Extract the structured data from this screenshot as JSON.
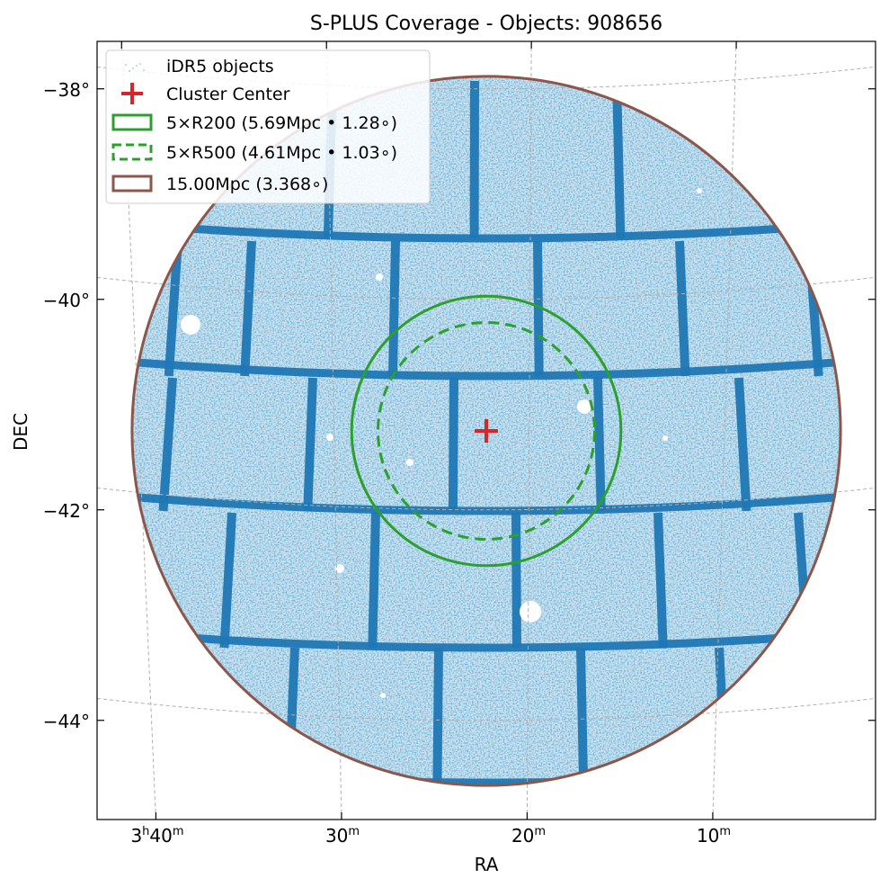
{
  "chart_data": {
    "type": "scatter",
    "title": "S-PLUS Coverage - Objects: 908656",
    "xlabel": "RA",
    "ylabel": "DEC",
    "x_ticks": [
      {
        "value_min": 220,
        "label_main": "3",
        "label_h": "h",
        "label_mm": "40",
        "label_m": "m"
      },
      {
        "value_min": 210,
        "label_main": "",
        "label_h": "",
        "label_mm": "30",
        "label_m": "m"
      },
      {
        "value_min": 200,
        "label_main": "",
        "label_h": "",
        "label_mm": "20",
        "label_m": "m"
      },
      {
        "value_min": 190,
        "label_main": "",
        "label_h": "",
        "label_mm": "10",
        "label_m": "m"
      }
    ],
    "y_ticks": [
      {
        "value": -38,
        "label": "−38°"
      },
      {
        "value": -40,
        "label": "−40°"
      },
      {
        "value": -42,
        "label": "−42°"
      },
      {
        "value": -44,
        "label": "−44°"
      }
    ],
    "grid": true,
    "legend_position": "top-left",
    "legend": [
      {
        "label": "iDR5 objects",
        "kind": "points",
        "color": "#1f77b4"
      },
      {
        "label": "Cluster Center",
        "kind": "marker",
        "color": "#d62728"
      },
      {
        "label": "5×R200 (5.69Mpc • 1.28∘)",
        "kind": "circle-solid",
        "color": "#2ca02c"
      },
      {
        "label": "5×R500 (4.61Mpc • 1.03∘)",
        "kind": "circle-dashed",
        "color": "#2ca02c"
      },
      {
        "label": "15.00Mpc (3.368∘)",
        "kind": "circle-solid",
        "color": "#8c564b"
      }
    ],
    "center": {
      "ra_min": 202.2,
      "dec": -41.25
    },
    "circles": [
      {
        "name": "5×R200",
        "radius_deg": 1.28,
        "style": "solid",
        "color": "#2ca02c"
      },
      {
        "name": "5×R500",
        "radius_deg": 1.03,
        "style": "dashed",
        "color": "#2ca02c"
      },
      {
        "name": "15.00Mpc",
        "radius_deg": 3.368,
        "style": "solid",
        "color": "#8c564b"
      }
    ],
    "object_count": 908656,
    "colors": {
      "points": "#1f77b4",
      "background_fill": "#dce8f2"
    }
  }
}
